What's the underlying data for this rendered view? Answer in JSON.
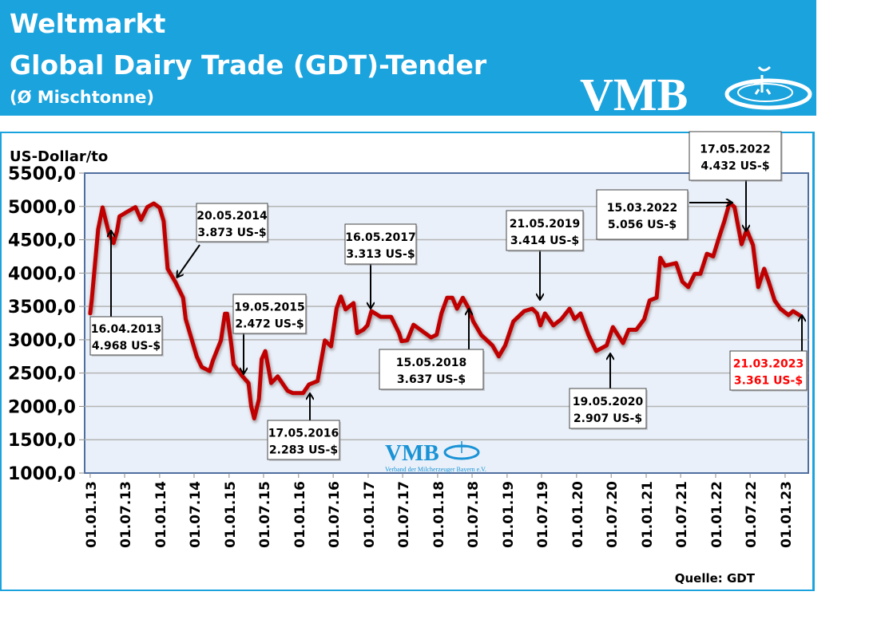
{
  "header": {
    "line1": "Weltmarkt",
    "line2": "Global Dairy Trade (GDT)-Tender",
    "line3": "(Ø Mischtonne)",
    "logo_text": "VMB",
    "background_color": "#1ba3dd"
  },
  "watermark": {
    "logo_text": "VMB",
    "subtitle": "Verband der Milcherzeuger Bayern e.V."
  },
  "source": "Quelle: GDT",
  "chart_data": {
    "type": "line",
    "ylabel": "US-Dollar/to",
    "ylim": [
      1000,
      5500
    ],
    "yticks": [
      "1000,0",
      "1500,0",
      "2000,0",
      "2500,0",
      "3000,0",
      "3500,0",
      "4000,0",
      "4500,0",
      "5000,0",
      "5500,0"
    ],
    "ytick_values": [
      1000,
      1500,
      2000,
      2500,
      3000,
      3500,
      4000,
      4500,
      5000,
      5500
    ],
    "xlim": [
      "2012-12-03",
      "2023-05-03"
    ],
    "xticks": [
      "01.01.13",
      "01.07.13",
      "01.01.14",
      "01.07.14",
      "01.01.15",
      "01.07.15",
      "01.01.16",
      "01.07.16",
      "01.01.17",
      "01.07.17",
      "01.01.18",
      "01.07.18",
      "01.01.19",
      "01.07.19",
      "01.01.20",
      "01.07.20",
      "01.01.21",
      "01.07.21",
      "01.01.22",
      "01.07.22",
      "01.01.23"
    ],
    "xtick_dates": [
      "2013-01-01",
      "2013-07-01",
      "2014-01-01",
      "2014-07-01",
      "2015-01-01",
      "2015-07-01",
      "2016-01-01",
      "2016-07-01",
      "2017-01-01",
      "2017-07-01",
      "2018-01-01",
      "2018-07-01",
      "2019-01-01",
      "2019-07-01",
      "2020-01-01",
      "2020-07-01",
      "2021-01-01",
      "2021-07-01",
      "2022-01-01",
      "2022-07-01",
      "2023-01-01"
    ],
    "grid": true,
    "line_color": "#c00000",
    "points": [
      [
        "2013-01-01",
        3395
      ],
      [
        "2013-01-09",
        3590
      ],
      [
        "2013-02-12",
        4660
      ],
      [
        "2013-03-07",
        4985
      ],
      [
        "2013-04-10",
        4590
      ],
      [
        "2013-05-04",
        4450
      ],
      [
        "2013-05-22",
        4630
      ],
      [
        "2013-06-04",
        4850
      ],
      [
        "2013-07-03",
        4900
      ],
      [
        "2013-08-27",
        4990
      ],
      [
        "2013-09-25",
        4800
      ],
      [
        "2013-10-28",
        4990
      ],
      [
        "2013-12-01",
        5045
      ],
      [
        "2014-01-01",
        4980
      ],
      [
        "2014-01-22",
        4780
      ],
      [
        "2014-02-12",
        4065
      ],
      [
        "2014-03-24",
        3870
      ],
      [
        "2014-05-04",
        3630
      ],
      [
        "2014-05-18",
        3310
      ],
      [
        "2014-07-15",
        2750
      ],
      [
        "2014-08-10",
        2590
      ],
      [
        "2014-09-21",
        2530
      ],
      [
        "2014-10-07",
        2680
      ],
      [
        "2014-11-19",
        2990
      ],
      [
        "2014-12-10",
        3390
      ],
      [
        "2014-12-22",
        3390
      ],
      [
        "2015-01-13",
        2920
      ],
      [
        "2015-01-25",
        2630
      ],
      [
        "2015-03-07",
        2470
      ],
      [
        "2015-04-13",
        2350
      ],
      [
        "2015-04-27",
        2000
      ],
      [
        "2015-05-13",
        1820
      ],
      [
        "2015-06-07",
        2110
      ],
      [
        "2015-06-21",
        2710
      ],
      [
        "2015-07-10",
        2830
      ],
      [
        "2015-08-10",
        2350
      ],
      [
        "2015-09-13",
        2450
      ],
      [
        "2015-11-04",
        2235
      ],
      [
        "2015-12-01",
        2200
      ],
      [
        "2016-01-25",
        2200
      ],
      [
        "2016-02-25",
        2330
      ],
      [
        "2016-04-10",
        2380
      ],
      [
        "2016-05-18",
        2990
      ],
      [
        "2016-06-20",
        2900
      ],
      [
        "2016-07-19",
        3470
      ],
      [
        "2016-08-10",
        3650
      ],
      [
        "2016-09-04",
        3455
      ],
      [
        "2016-10-16",
        3550
      ],
      [
        "2016-11-04",
        3100
      ],
      [
        "2016-12-06",
        3150
      ],
      [
        "2016-12-28",
        3215
      ],
      [
        "2017-01-18",
        3430
      ],
      [
        "2017-03-07",
        3345
      ],
      [
        "2017-05-01",
        3345
      ],
      [
        "2017-06-12",
        3100
      ],
      [
        "2017-06-25",
        2980
      ],
      [
        "2017-07-25",
        2990
      ],
      [
        "2017-08-27",
        3225
      ],
      [
        "2017-11-27",
        3035
      ],
      [
        "2017-12-27",
        3075
      ],
      [
        "2018-01-21",
        3395
      ],
      [
        "2018-02-20",
        3630
      ],
      [
        "2018-03-19",
        3630
      ],
      [
        "2018-04-13",
        3465
      ],
      [
        "2018-05-13",
        3630
      ],
      [
        "2018-06-13",
        3470
      ],
      [
        "2018-07-07",
        3275
      ],
      [
        "2018-08-18",
        3070
      ],
      [
        "2018-10-16",
        2915
      ],
      [
        "2018-11-18",
        2750
      ],
      [
        "2018-12-22",
        2915
      ],
      [
        "2019-02-03",
        3275
      ],
      [
        "2019-04-01",
        3430
      ],
      [
        "2019-05-13",
        3465
      ],
      [
        "2019-06-07",
        3395
      ],
      [
        "2019-06-25",
        3215
      ],
      [
        "2019-07-19",
        3395
      ],
      [
        "2019-09-01",
        3215
      ],
      [
        "2019-10-13",
        3310
      ],
      [
        "2019-11-25",
        3465
      ],
      [
        "2019-12-22",
        3310
      ],
      [
        "2020-01-22",
        3395
      ],
      [
        "2020-03-04",
        3070
      ],
      [
        "2020-04-13",
        2830
      ],
      [
        "2020-06-07",
        2915
      ],
      [
        "2020-07-10",
        3190
      ],
      [
        "2020-09-01",
        2950
      ],
      [
        "2020-10-01",
        3150
      ],
      [
        "2020-11-10",
        3150
      ],
      [
        "2020-12-22",
        3310
      ],
      [
        "2021-01-19",
        3590
      ],
      [
        "2021-02-25",
        3630
      ],
      [
        "2021-03-16",
        4230
      ],
      [
        "2021-04-10",
        4110
      ],
      [
        "2021-06-07",
        4150
      ],
      [
        "2021-07-10",
        3870
      ],
      [
        "2021-08-10",
        3790
      ],
      [
        "2021-09-13",
        3990
      ],
      [
        "2021-10-13",
        3990
      ],
      [
        "2021-11-16",
        4290
      ],
      [
        "2021-12-19",
        4250
      ],
      [
        "2022-01-25",
        4590
      ],
      [
        "2022-02-16",
        4780
      ],
      [
        "2022-03-15",
        5056
      ],
      [
        "2022-04-10",
        4990
      ],
      [
        "2022-05-17",
        4432
      ],
      [
        "2022-06-13",
        4650
      ],
      [
        "2022-07-16",
        4420
      ],
      [
        "2022-08-13",
        3790
      ],
      [
        "2022-09-13",
        4065
      ],
      [
        "2022-10-07",
        3870
      ],
      [
        "2022-11-07",
        3590
      ],
      [
        "2022-12-07",
        3465
      ],
      [
        "2023-01-19",
        3370
      ],
      [
        "2023-02-12",
        3430
      ],
      [
        "2023-03-21",
        3361
      ]
    ],
    "annotations": [
      {
        "date_label": "16.04.2013",
        "value_label": "4.968 US-$",
        "color": "#000000"
      },
      {
        "date_label": "20.05.2014",
        "value_label": "3.873 US-$",
        "color": "#000000"
      },
      {
        "date_label": "19.05.2015",
        "value_label": "2.472 US-$",
        "color": "#000000"
      },
      {
        "date_label": "17.05.2016",
        "value_label": "2.283 US-$",
        "color": "#000000"
      },
      {
        "date_label": "16.05.2017",
        "value_label": "3.313 US-$",
        "color": "#000000"
      },
      {
        "date_label": "15.05.2018",
        "value_label": "3.637 US-$",
        "color": "#000000"
      },
      {
        "date_label": "21.05.2019",
        "value_label": "3.414 US-$",
        "color": "#000000"
      },
      {
        "date_label": "19.05.2020",
        "value_label": "2.907 US-$",
        "color": "#000000"
      },
      {
        "date_label": "15.03.2022",
        "value_label": "5.056 US-$",
        "color": "#000000"
      },
      {
        "date_label": "17.05.2022",
        "value_label": "4.432 US-$",
        "color": "#000000"
      },
      {
        "date_label": "21.03.2023",
        "value_label": "3.361 US-$",
        "color": "#ff0000"
      }
    ]
  }
}
